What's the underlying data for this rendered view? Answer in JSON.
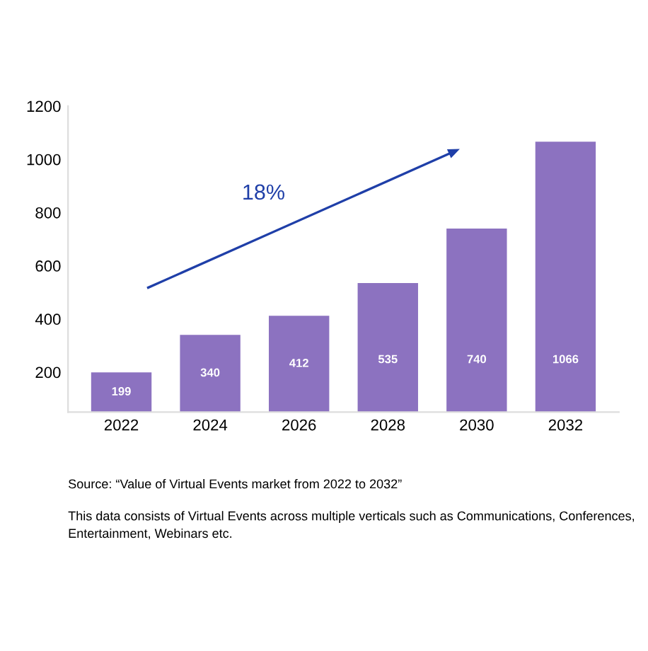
{
  "chart_data": {
    "type": "bar",
    "categories": [
      "2022",
      "2024",
      "2026",
      "2028",
      "2030",
      "2032"
    ],
    "values": [
      199,
      340,
      412,
      535,
      740,
      1066
    ],
    "color": "#8c72c0",
    "data_labels": true,
    "ylim": [
      50,
      1200
    ],
    "yticks": [
      200,
      400,
      600,
      800,
      1000,
      1200
    ],
    "grid": false,
    "legend": false,
    "annotations": [
      "18%",
      "Source: “Value of Virtual Events market from 2022 to 2032”",
      "This data consists of Virtual Events across multiple verticals such as Communications, Conferences, Entertainment, Webinars etc."
    ]
  }
}
